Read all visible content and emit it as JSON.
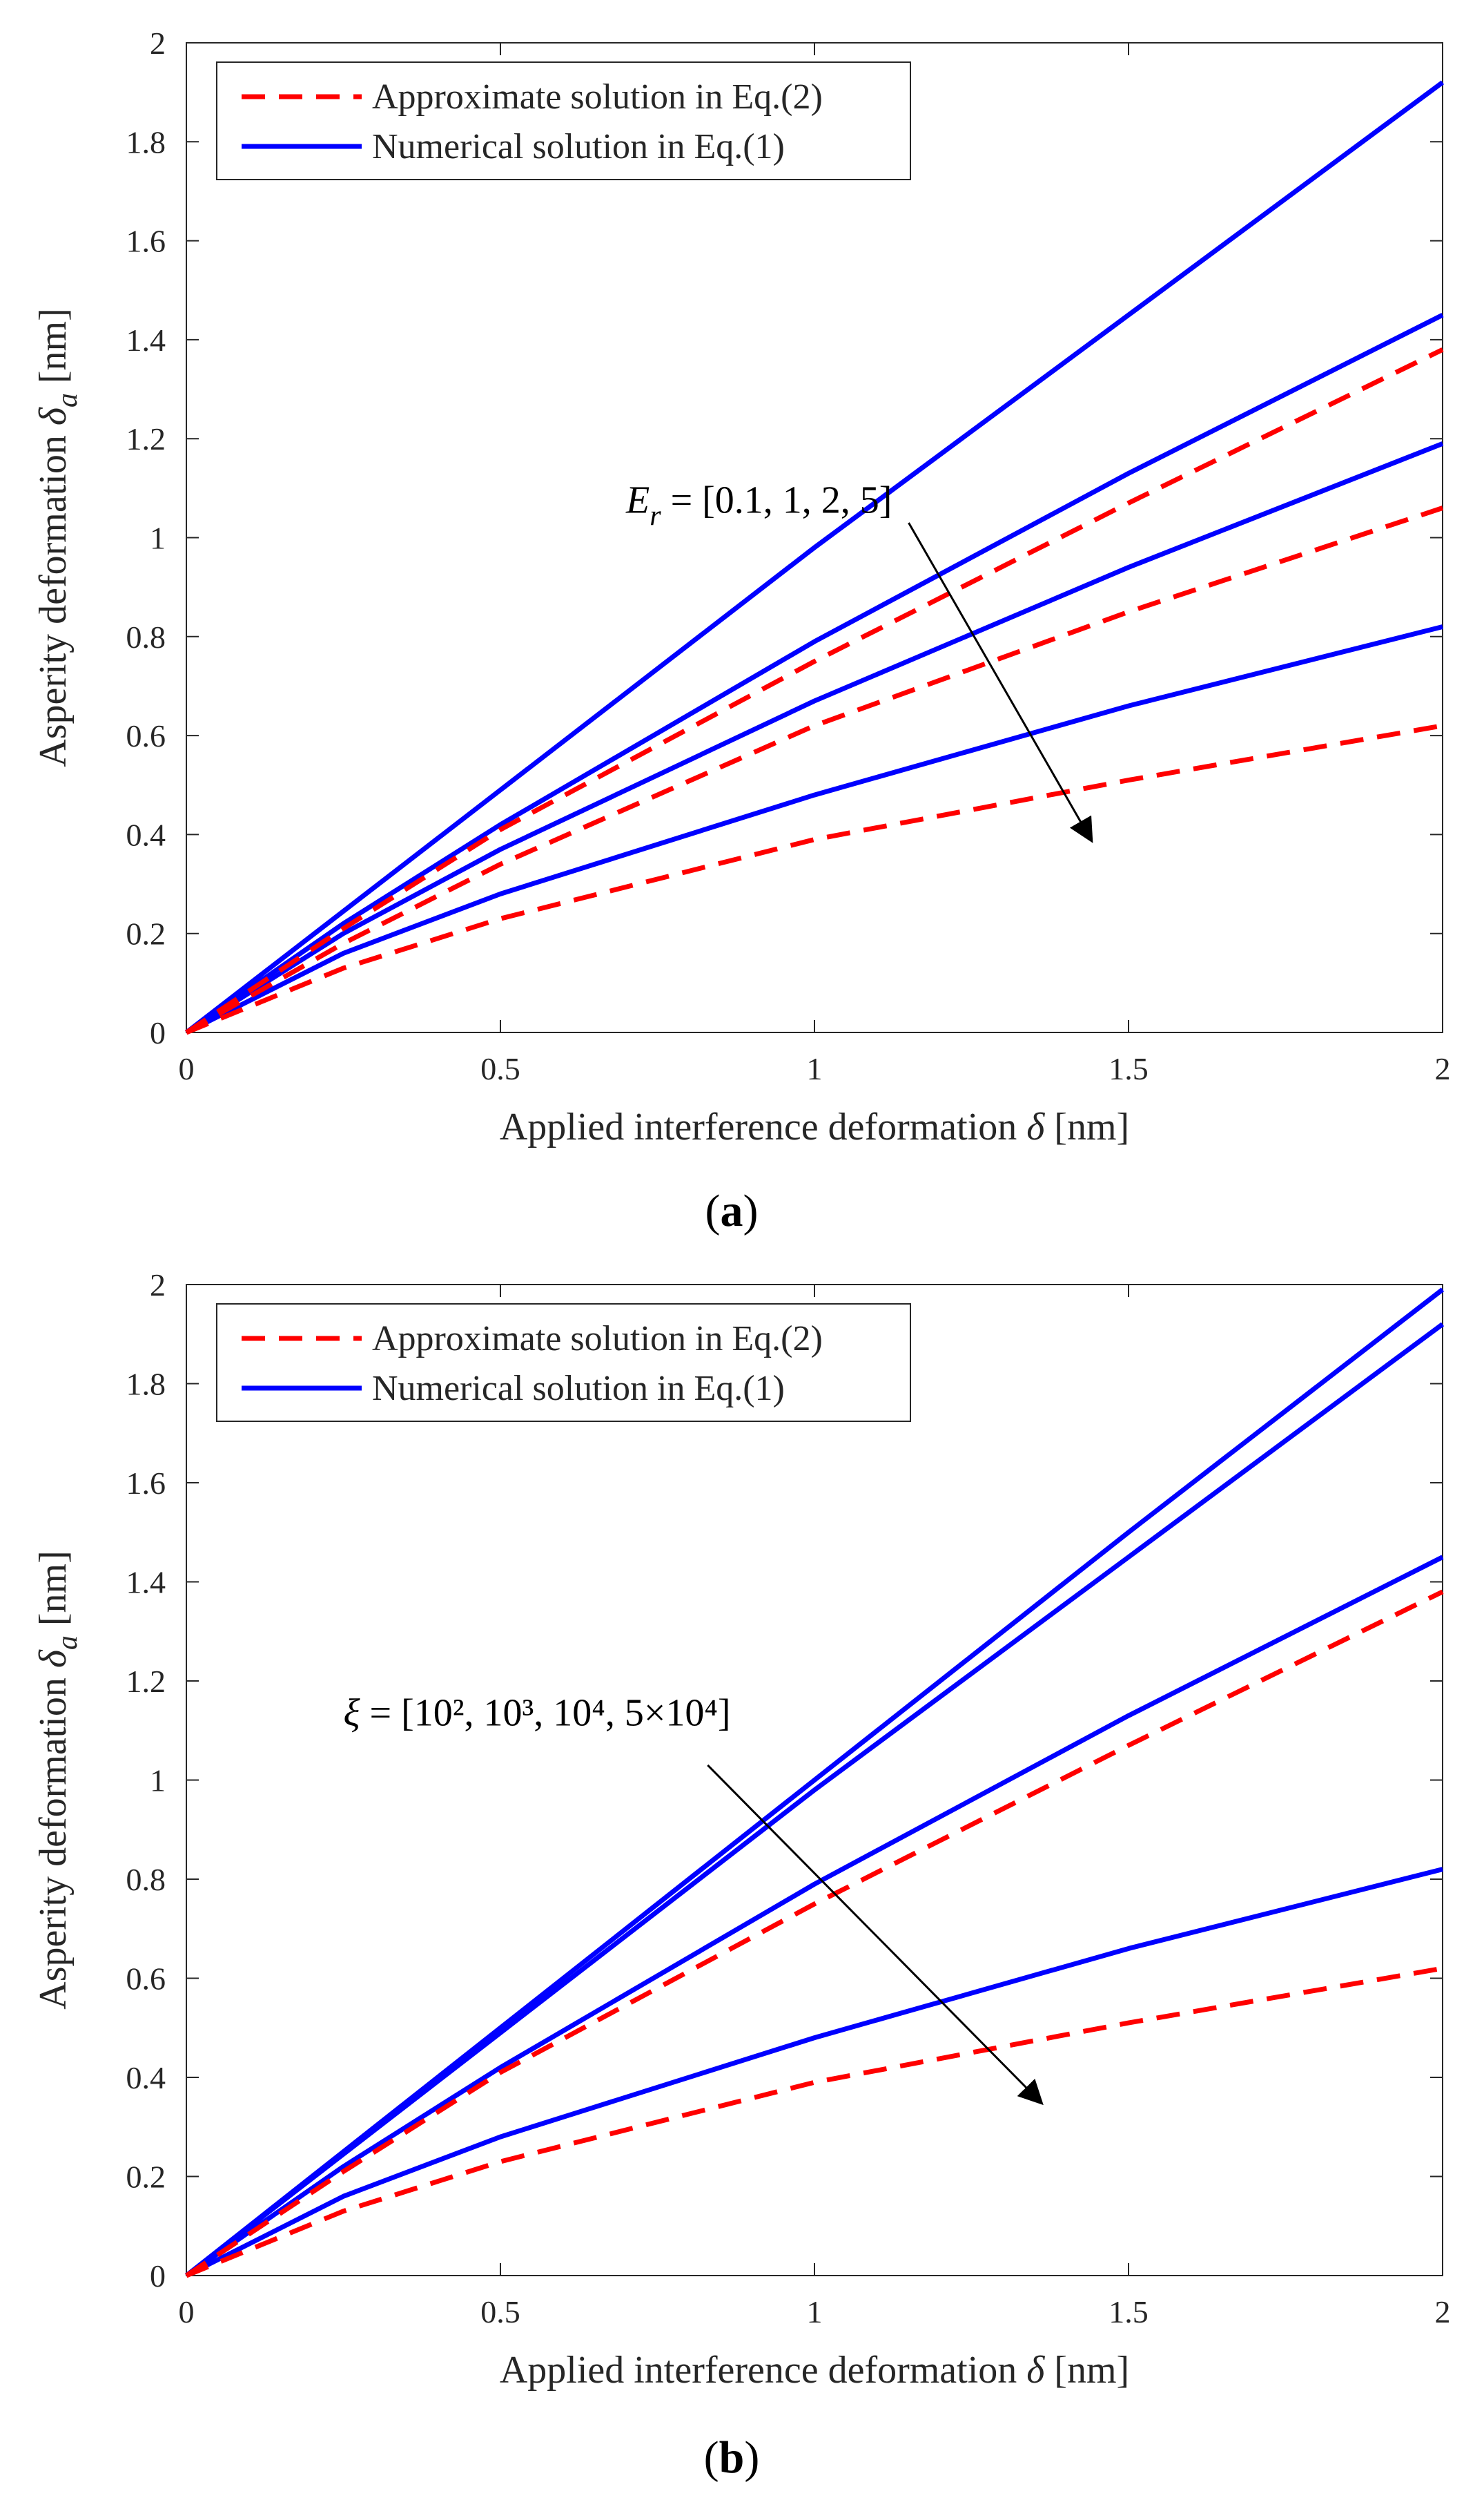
{
  "chart_data": [
    {
      "type": "line",
      "panel_label": "a",
      "xlabel_prefix": "Applied interference deformation",
      "xlabel_symbol": "δ",
      "xlabel_unit": "[nm]",
      "ylabel_prefix": "Asperity deformation",
      "ylabel_symbol": "δ",
      "ylabel_subscript": "a",
      "ylabel_unit": "[nm]",
      "xlim": [
        0,
        2
      ],
      "ylim": [
        0,
        2
      ],
      "xticks": [
        "0",
        "0.5",
        "1",
        "1.5",
        "2"
      ],
      "yticks": [
        "0",
        "0.2",
        "0.4",
        "0.6",
        "0.8",
        "1",
        "1.2",
        "1.4",
        "1.6",
        "1.8",
        "2"
      ],
      "legend": {
        "position": "top-left",
        "entries": [
          {
            "label": "Approximate solution in Eq.(2)",
            "style": "dashed",
            "color": "#ff0000"
          },
          {
            "label": "Numerical solution in Eq.(1)",
            "style": "solid",
            "color": "#0000ff"
          }
        ]
      },
      "annotation": {
        "symbol": "E",
        "subscript": "r",
        "text": " = [0.1, 1, 2, 5]",
        "arrow_from": [
          1.15,
          1.03
        ],
        "arrow_to": [
          1.44,
          0.39
        ]
      },
      "series": [
        {
          "name": "Numerical E_r=0.1",
          "style": "solid",
          "color": "#0000ff",
          "x": [
            0,
            0.5,
            1,
            1.5,
            2
          ],
          "y": [
            0,
            0.49,
            0.98,
            1.45,
            1.92
          ]
        },
        {
          "name": "Numerical E_r=1",
          "style": "solid",
          "color": "#0000ff",
          "x": [
            0,
            0.25,
            0.5,
            1,
            1.5,
            2
          ],
          "y": [
            0,
            0.22,
            0.42,
            0.79,
            1.13,
            1.45
          ]
        },
        {
          "name": "Numerical E_r=2",
          "style": "solid",
          "color": "#0000ff",
          "x": [
            0,
            0.25,
            0.5,
            1,
            1.5,
            2
          ],
          "y": [
            0,
            0.2,
            0.37,
            0.67,
            0.94,
            1.19
          ]
        },
        {
          "name": "Numerical E_r=5",
          "style": "solid",
          "color": "#0000ff",
          "x": [
            0,
            0.25,
            0.5,
            1,
            1.5,
            2
          ],
          "y": [
            0,
            0.16,
            0.28,
            0.48,
            0.66,
            0.82
          ]
        },
        {
          "name": "Approximate E_r=1",
          "style": "dashed",
          "color": "#ff0000",
          "x": [
            0,
            0.25,
            0.5,
            1,
            1.5,
            2
          ],
          "y": [
            0,
            0.21,
            0.41,
            0.75,
            1.07,
            1.38
          ]
        },
        {
          "name": "Approximate E_r=2",
          "style": "dashed",
          "color": "#ff0000",
          "x": [
            0,
            0.25,
            0.5,
            1,
            1.5,
            2
          ],
          "y": [
            0,
            0.18,
            0.34,
            0.62,
            0.85,
            1.06
          ]
        },
        {
          "name": "Approximate E_r=5",
          "style": "dashed",
          "color": "#ff0000",
          "x": [
            0,
            0.25,
            0.5,
            1,
            1.5,
            2
          ],
          "y": [
            0,
            0.13,
            0.23,
            0.39,
            0.51,
            0.62
          ]
        }
      ]
    },
    {
      "type": "line",
      "panel_label": "b",
      "xlabel_prefix": "Applied interference deformation",
      "xlabel_symbol": "δ",
      "xlabel_unit": "[nm]",
      "ylabel_prefix": "Asperity deformation",
      "ylabel_symbol": "δ",
      "ylabel_subscript": "a",
      "ylabel_unit": "[nm]",
      "xlim": [
        0,
        2
      ],
      "ylim": [
        0,
        2
      ],
      "xticks": [
        "0",
        "0.5",
        "1",
        "1.5",
        "2"
      ],
      "yticks": [
        "0",
        "0.2",
        "0.4",
        "0.6",
        "0.8",
        "1",
        "1.2",
        "1.4",
        "1.6",
        "1.8",
        "2"
      ],
      "legend": {
        "position": "top-left",
        "entries": [
          {
            "label": "Approximate solution in Eq.(2)",
            "style": "dashed",
            "color": "#ff0000"
          },
          {
            "label": "Numerical solution in Eq.(1)",
            "style": "solid",
            "color": "#0000ff"
          }
        ]
      },
      "annotation": {
        "symbol": "ξ",
        "text": " = [10², 10³, 10⁴, 5×10⁴]",
        "arrow_from": [
          0.83,
          1.03
        ],
        "arrow_to": [
          1.36,
          0.35
        ]
      },
      "series": [
        {
          "name": "Numerical ξ=10^2",
          "style": "solid",
          "color": "#0000ff",
          "x": [
            0,
            0.5,
            1,
            1.5,
            2
          ],
          "y": [
            0,
            0.5,
            1.0,
            1.5,
            1.99
          ]
        },
        {
          "name": "Numerical ξ=10^3",
          "style": "solid",
          "color": "#0000ff",
          "x": [
            0,
            0.5,
            1,
            1.5,
            2
          ],
          "y": [
            0,
            0.49,
            0.98,
            1.45,
            1.92
          ]
        },
        {
          "name": "Numerical ξ=10^4",
          "style": "solid",
          "color": "#0000ff",
          "x": [
            0,
            0.25,
            0.5,
            1,
            1.5,
            2
          ],
          "y": [
            0,
            0.22,
            0.42,
            0.79,
            1.13,
            1.45
          ]
        },
        {
          "name": "Numerical ξ=5×10^4",
          "style": "solid",
          "color": "#0000ff",
          "x": [
            0,
            0.25,
            0.5,
            1,
            1.5,
            2
          ],
          "y": [
            0,
            0.16,
            0.28,
            0.48,
            0.66,
            0.82
          ]
        },
        {
          "name": "Approximate ξ=10^4",
          "style": "dashed",
          "color": "#ff0000",
          "x": [
            0,
            0.25,
            0.5,
            1,
            1.5,
            2
          ],
          "y": [
            0,
            0.21,
            0.41,
            0.75,
            1.07,
            1.38
          ]
        },
        {
          "name": "Approximate ξ=5×10^4",
          "style": "dashed",
          "color": "#ff0000",
          "x": [
            0,
            0.25,
            0.5,
            1,
            1.5,
            2
          ],
          "y": [
            0,
            0.13,
            0.23,
            0.39,
            0.51,
            0.62
          ]
        }
      ]
    }
  ]
}
